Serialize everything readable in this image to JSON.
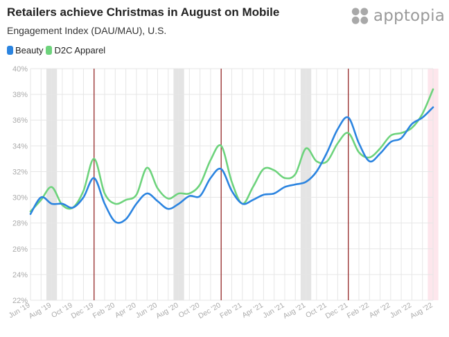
{
  "header": {
    "title": "Retailers achieve Christmas in August on Mobile",
    "subtitle": "Engagement Index (DAU/MAU), U.S."
  },
  "logo": {
    "text": "apptopia",
    "icon": "apptopia-dots-icon"
  },
  "colors": {
    "beauty": "#2b84e0",
    "d2c": "#6dd37c",
    "august_band": "#e4e4e4",
    "last_band": "#fde6ec",
    "december_line": "#9b3636",
    "grid": "#e6e6e6",
    "axis_text": "#aaaaaa"
  },
  "chart_data": {
    "type": "line",
    "title": "Retailers achieve Christmas in August on Mobile",
    "subtitle": "Engagement Index (DAU/MAU), U.S.",
    "xlabel": "",
    "ylabel": "",
    "ylim": [
      22,
      40
    ],
    "yticks": [
      22,
      24,
      26,
      28,
      30,
      32,
      34,
      36,
      38,
      40
    ],
    "ytick_labels": [
      "22%",
      "24%",
      "26%",
      "28%",
      "30%",
      "32%",
      "34%",
      "36%",
      "38%",
      "40%"
    ],
    "grid": true,
    "legend_position": "top-left",
    "x": [
      "Jun '19",
      "Jul '19",
      "Aug '19",
      "Sep '19",
      "Oct '19",
      "Nov '19",
      "Dec '19",
      "Jan '20",
      "Feb '20",
      "Mar '20",
      "Apr '20",
      "May '20",
      "Jun '20",
      "Jul '20",
      "Aug '20",
      "Sep '20",
      "Oct '20",
      "Nov '20",
      "Dec '20",
      "Jan '21",
      "Feb '21",
      "Mar '21",
      "Apr '21",
      "May '21",
      "Jun '21",
      "Jul '21",
      "Aug '21",
      "Sep '21",
      "Oct '21",
      "Nov '21",
      "Dec '21",
      "Jan '22",
      "Feb '22",
      "Mar '22",
      "Apr '22",
      "May '22",
      "Jun '22",
      "Jul '22",
      "Aug '22"
    ],
    "x_tick_labels": [
      "Jun '19",
      "Aug '19",
      "Oct '19",
      "Dec '19",
      "Feb '20",
      "Apr '20",
      "Jun '20",
      "Aug '20",
      "Oct '20",
      "Dec '20",
      "Feb '21",
      "Apr '21",
      "Jun '21",
      "Aug '21",
      "Oct '21",
      "Dec '21",
      "Feb '22",
      "Apr '22",
      "Jun '22",
      "Aug '22"
    ],
    "series": [
      {
        "name": "Beauty",
        "color": "#2b84e0",
        "values": [
          28.7,
          30.0,
          29.5,
          29.5,
          29.2,
          30.0,
          31.5,
          29.5,
          28.1,
          28.3,
          29.5,
          30.3,
          29.7,
          29.1,
          29.5,
          30.1,
          30.1,
          31.5,
          32.2,
          30.5,
          29.5,
          29.8,
          30.2,
          30.3,
          30.8,
          31.0,
          31.2,
          32.0,
          33.5,
          35.3,
          36.2,
          34.2,
          32.8,
          33.4,
          34.3,
          34.6,
          35.7,
          36.2,
          37.0
        ]
      },
      {
        "name": "D2C Apparel",
        "color": "#6dd37c",
        "values": [
          28.9,
          29.8,
          30.8,
          29.4,
          29.2,
          30.5,
          33.0,
          30.3,
          29.5,
          29.8,
          30.2,
          32.3,
          30.7,
          29.9,
          30.3,
          30.3,
          31.0,
          32.9,
          34.0,
          31.2,
          29.5,
          30.8,
          32.2,
          32.1,
          31.5,
          31.8,
          33.8,
          32.8,
          32.8,
          34.2,
          35.0,
          33.5,
          33.1,
          33.8,
          34.8,
          35.0,
          35.4,
          36.5,
          38.4
        ]
      }
    ],
    "august_bands": [
      "Aug '19",
      "Aug '20",
      "Aug '21"
    ],
    "highlight_band": "Aug '22",
    "december_markers": [
      "Dec '19",
      "Dec '20",
      "Dec '21"
    ]
  }
}
